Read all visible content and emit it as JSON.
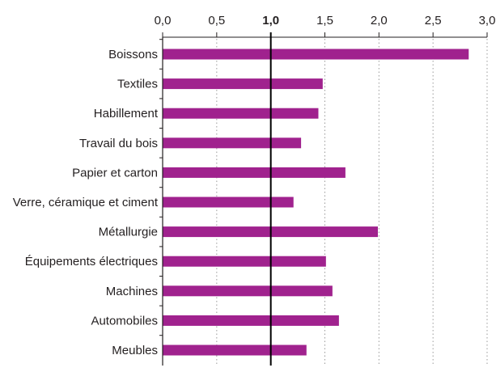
{
  "chart_data": {
    "type": "bar",
    "orientation": "horizontal",
    "categories": [
      "Boissons",
      "Textiles",
      "Habillement",
      "Travail du bois",
      "Papier et carton",
      "Verre, céramique et ciment",
      "Métallurgie",
      "Équipements électriques",
      "Machines",
      "Automobiles",
      "Meubles"
    ],
    "values": [
      2.83,
      1.48,
      1.44,
      1.28,
      1.69,
      1.21,
      1.99,
      1.51,
      1.57,
      1.63,
      1.33
    ],
    "bar_color": "#a0228e",
    "xlim": [
      0,
      3.0
    ],
    "xticks": [
      0,
      0.5,
      1.0,
      1.5,
      2.0,
      2.5,
      3.0
    ],
    "xtick_labels": [
      "0,0",
      "0,5",
      "1,0",
      "1,5",
      "2,0",
      "2,5",
      "3,0"
    ],
    "reference_line": 1.0,
    "x_axis_position": "top",
    "grid": "vertical dotted",
    "title": "",
    "xlabel": "",
    "ylabel": ""
  }
}
